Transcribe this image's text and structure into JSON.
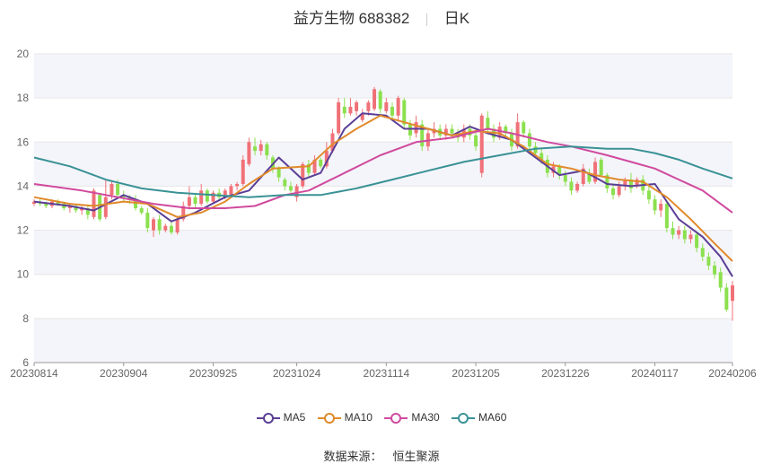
{
  "header": {
    "stock_name": "益方生物 688382",
    "period": "日K"
  },
  "source": {
    "label": "数据来源：",
    "provider": "恒生聚源"
  },
  "colors": {
    "up": "#f07178",
    "down": "#8be04e",
    "MA5": "#5b3e96",
    "MA10": "#e08a2b",
    "MA30": "#d04a9e",
    "MA60": "#3a9296",
    "band": "#f4f5fa",
    "grid": "#e6e6e6"
  },
  "chart_data": {
    "type": "candlestick",
    "ylim": [
      6,
      20
    ],
    "yticks": [
      6,
      8,
      10,
      12,
      14,
      16,
      18,
      20
    ],
    "xtick_labels": [
      "20230814",
      "20230904",
      "20230925",
      "20231024",
      "20231114",
      "20231205",
      "20231226",
      "20240117",
      "20240206"
    ],
    "trading_days": 118,
    "xtick_day_index": [
      0,
      15,
      30,
      44,
      59,
      74,
      89,
      104,
      117
    ],
    "legend": [
      "MA5",
      "MA10",
      "MA30",
      "MA60"
    ],
    "series": [
      {
        "name": "MA5",
        "points": [
          [
            0,
            13.3
          ],
          [
            6,
            13.1
          ],
          [
            10,
            12.9
          ],
          [
            15,
            13.6
          ],
          [
            19,
            13.2
          ],
          [
            23,
            12.4
          ],
          [
            27,
            12.8
          ],
          [
            32,
            13.5
          ],
          [
            36,
            13.8
          ],
          [
            41,
            15.3
          ],
          [
            45,
            14.3
          ],
          [
            48,
            14.6
          ],
          [
            52,
            16.6
          ],
          [
            55,
            17.3
          ],
          [
            59,
            17.2
          ],
          [
            62,
            16.6
          ],
          [
            66,
            16.6
          ],
          [
            70,
            16.3
          ],
          [
            73,
            16.7
          ],
          [
            76,
            16.4
          ],
          [
            80,
            16.1
          ],
          [
            84,
            15.3
          ],
          [
            88,
            14.5
          ],
          [
            92,
            14.7
          ],
          [
            96,
            14.1
          ],
          [
            100,
            14.0
          ],
          [
            104,
            14.1
          ],
          [
            108,
            12.5
          ],
          [
            112,
            11.7
          ],
          [
            115,
            10.8
          ],
          [
            117,
            9.9
          ]
        ]
      },
      {
        "name": "MA10",
        "points": [
          [
            0,
            13.5
          ],
          [
            6,
            13.2
          ],
          [
            10,
            13.1
          ],
          [
            15,
            13.3
          ],
          [
            19,
            13.2
          ],
          [
            24,
            12.6
          ],
          [
            28,
            12.8
          ],
          [
            32,
            13.3
          ],
          [
            36,
            14.1
          ],
          [
            40,
            14.8
          ],
          [
            46,
            14.9
          ],
          [
            50,
            15.9
          ],
          [
            54,
            16.6
          ],
          [
            58,
            17.2
          ],
          [
            62,
            16.9
          ],
          [
            66,
            16.6
          ],
          [
            70,
            16.3
          ],
          [
            74,
            16.5
          ],
          [
            78,
            16.4
          ],
          [
            82,
            15.8
          ],
          [
            86,
            15.0
          ],
          [
            90,
            14.8
          ],
          [
            94,
            14.5
          ],
          [
            98,
            14.3
          ],
          [
            102,
            14.2
          ],
          [
            106,
            13.5
          ],
          [
            110,
            12.5
          ],
          [
            114,
            11.4
          ],
          [
            117,
            10.6
          ]
        ]
      },
      {
        "name": "MA30",
        "points": [
          [
            0,
            14.1
          ],
          [
            8,
            13.8
          ],
          [
            14,
            13.5
          ],
          [
            20,
            13.2
          ],
          [
            26,
            13.0
          ],
          [
            32,
            13.0
          ],
          [
            37,
            13.1
          ],
          [
            42,
            13.6
          ],
          [
            46,
            13.8
          ],
          [
            52,
            14.6
          ],
          [
            58,
            15.4
          ],
          [
            64,
            16.0
          ],
          [
            70,
            16.2
          ],
          [
            76,
            16.6
          ],
          [
            80,
            16.4
          ],
          [
            86,
            16.0
          ],
          [
            90,
            15.8
          ],
          [
            96,
            15.4
          ],
          [
            100,
            15.1
          ],
          [
            104,
            14.8
          ],
          [
            108,
            14.3
          ],
          [
            112,
            13.8
          ],
          [
            117,
            12.8
          ]
        ]
      },
      {
        "name": "MA60",
        "points": [
          [
            0,
            15.3
          ],
          [
            6,
            14.9
          ],
          [
            12,
            14.3
          ],
          [
            18,
            13.9
          ],
          [
            24,
            13.7
          ],
          [
            30,
            13.6
          ],
          [
            36,
            13.5
          ],
          [
            42,
            13.6
          ],
          [
            48,
            13.6
          ],
          [
            54,
            13.9
          ],
          [
            60,
            14.3
          ],
          [
            66,
            14.7
          ],
          [
            72,
            15.1
          ],
          [
            78,
            15.4
          ],
          [
            84,
            15.7
          ],
          [
            90,
            15.8
          ],
          [
            96,
            15.7
          ],
          [
            100,
            15.7
          ],
          [
            104,
            15.5
          ],
          [
            108,
            15.2
          ],
          [
            112,
            14.8
          ],
          [
            117,
            14.35
          ]
        ]
      }
    ],
    "candles": [
      [
        0,
        13.2,
        13.3,
        13.4,
        13.1
      ],
      [
        1,
        13.3,
        13.2,
        13.4,
        13.1
      ],
      [
        2,
        13.2,
        13.1,
        13.3,
        13.0
      ],
      [
        3,
        13.1,
        13.3,
        13.4,
        13.0
      ],
      [
        4,
        13.3,
        13.2,
        13.4,
        13.1
      ],
      [
        5,
        13.2,
        13.0,
        13.3,
        12.9
      ],
      [
        6,
        13.0,
        13.1,
        13.2,
        12.8
      ],
      [
        7,
        13.1,
        12.9,
        13.2,
        12.8
      ],
      [
        8,
        12.9,
        13.0,
        13.1,
        12.7
      ],
      [
        9,
        13.0,
        12.7,
        13.1,
        12.5
      ],
      [
        10,
        12.6,
        13.8,
        13.9,
        12.5
      ],
      [
        11,
        13.6,
        12.5,
        13.7,
        12.4
      ],
      [
        12,
        12.6,
        13.5,
        14.3,
        12.5
      ],
      [
        13,
        13.6,
        14.1,
        14.2,
        13.4
      ],
      [
        14,
        14.1,
        13.6,
        14.3,
        13.5
      ],
      [
        15,
        13.6,
        13.5,
        13.8,
        13.3
      ],
      [
        16,
        13.5,
        13.4,
        13.6,
        13.2
      ],
      [
        17,
        13.4,
        13.0,
        13.6,
        12.9
      ],
      [
        18,
        13.0,
        12.8,
        13.1,
        12.7
      ],
      [
        19,
        12.8,
        12.1,
        13.0,
        11.9
      ],
      [
        20,
        12.0,
        12.5,
        12.6,
        11.7
      ],
      [
        21,
        12.5,
        12.0,
        12.7,
        11.8
      ],
      [
        22,
        12.0,
        12.2,
        12.3,
        11.9
      ],
      [
        23,
        12.2,
        11.9,
        12.4,
        11.8
      ],
      [
        24,
        11.9,
        12.5,
        12.6,
        11.8
      ],
      [
        25,
        12.5,
        13.1,
        13.3,
        12.4
      ],
      [
        26,
        13.1,
        13.5,
        14.0,
        13.0
      ],
      [
        27,
        13.5,
        13.2,
        13.7,
        13.0
      ],
      [
        28,
        13.2,
        13.8,
        14.1,
        13.1
      ],
      [
        29,
        13.8,
        13.3,
        13.9,
        13.2
      ],
      [
        30,
        13.3,
        13.7,
        13.8,
        13.2
      ],
      [
        31,
        13.7,
        13.5,
        13.9,
        13.4
      ],
      [
        32,
        13.5,
        13.8,
        13.9,
        13.4
      ],
      [
        33,
        13.6,
        14.0,
        14.1,
        13.5
      ],
      [
        34,
        14.0,
        14.1,
        14.2,
        13.8
      ],
      [
        35,
        14.1,
        15.2,
        15.4,
        14.0
      ],
      [
        36,
        15.0,
        16.0,
        16.2,
        14.9
      ],
      [
        37,
        15.8,
        15.6,
        16.2,
        15.4
      ],
      [
        38,
        15.6,
        15.9,
        16.1,
        15.4
      ],
      [
        39,
        15.9,
        15.4,
        16.0,
        15.2
      ],
      [
        40,
        15.3,
        14.8,
        15.4,
        14.6
      ],
      [
        41,
        14.8,
        14.4,
        14.9,
        14.2
      ],
      [
        42,
        14.3,
        14.0,
        14.4,
        13.8
      ],
      [
        43,
        14.0,
        13.8,
        14.2,
        13.7
      ],
      [
        44,
        13.5,
        14.0,
        14.1,
        13.3
      ],
      [
        45,
        14.0,
        15.0,
        15.1,
        13.9
      ],
      [
        46,
        15.0,
        14.6,
        15.2,
        14.4
      ],
      [
        47,
        14.6,
        15.2,
        15.4,
        14.5
      ],
      [
        48,
        15.2,
        14.9,
        15.3,
        14.8
      ],
      [
        49,
        14.9,
        15.6,
        16.0,
        14.8
      ],
      [
        50,
        15.6,
        16.4,
        16.6,
        15.5
      ],
      [
        51,
        16.4,
        17.8,
        18.0,
        16.3
      ],
      [
        52,
        17.6,
        17.3,
        18.0,
        17.1
      ],
      [
        53,
        17.3,
        17.6,
        18.0,
        17.2
      ],
      [
        54,
        17.4,
        17.8,
        17.9,
        17.2
      ],
      [
        55,
        17.0,
        17.3,
        17.5,
        16.9
      ],
      [
        56,
        17.4,
        17.8,
        17.9,
        17.2
      ],
      [
        57,
        17.5,
        18.4,
        18.5,
        17.4
      ],
      [
        58,
        18.3,
        17.5,
        18.4,
        17.3
      ],
      [
        59,
        17.4,
        17.8,
        18.0,
        17.3
      ],
      [
        60,
        17.6,
        17.2,
        17.8,
        17.0
      ],
      [
        61,
        17.2,
        18.0,
        18.1,
        17.0
      ],
      [
        62,
        17.9,
        16.8,
        18.0,
        16.6
      ],
      [
        63,
        16.8,
        16.3,
        17.0,
        16.1
      ],
      [
        64,
        16.4,
        16.9,
        17.2,
        16.2
      ],
      [
        65,
        16.8,
        15.8,
        17.0,
        15.6
      ],
      [
        66,
        15.8,
        16.4,
        16.6,
        15.6
      ],
      [
        67,
        16.4,
        16.6,
        16.9,
        16.2
      ],
      [
        68,
        16.6,
        16.3,
        16.8,
        16.1
      ],
      [
        69,
        16.3,
        16.6,
        16.8,
        16.1
      ],
      [
        70,
        16.6,
        16.4,
        16.8,
        16.2
      ],
      [
        71,
        16.4,
        16.2,
        16.6,
        16.0
      ],
      [
        72,
        16.2,
        16.6,
        16.8,
        16.0
      ],
      [
        73,
        16.6,
        16.3,
        16.8,
        16.1
      ],
      [
        74,
        16.3,
        15.8,
        16.5,
        15.6
      ],
      [
        75,
        14.6,
        17.2,
        17.3,
        14.4
      ],
      [
        76,
        17.1,
        16.6,
        17.4,
        16.4
      ],
      [
        77,
        16.6,
        16.2,
        16.8,
        16.0
      ],
      [
        78,
        16.2,
        16.7,
        16.9,
        16.1
      ],
      [
        79,
        16.7,
        16.4,
        16.8,
        16.2
      ],
      [
        80,
        16.4,
        15.8,
        16.6,
        15.6
      ],
      [
        81,
        15.8,
        16.9,
        17.3,
        15.7
      ],
      [
        82,
        16.9,
        16.4,
        17.0,
        16.2
      ],
      [
        83,
        16.4,
        15.8,
        16.6,
        15.6
      ],
      [
        84,
        15.8,
        15.5,
        16.0,
        15.3
      ],
      [
        85,
        15.5,
        15.2,
        15.7,
        15.0
      ],
      [
        86,
        15.2,
        14.6,
        15.4,
        14.4
      ],
      [
        87,
        14.6,
        14.9,
        15.1,
        14.4
      ],
      [
        88,
        14.9,
        14.5,
        15.0,
        14.3
      ],
      [
        89,
        14.5,
        14.2,
        14.7,
        14.0
      ],
      [
        90,
        14.2,
        13.8,
        14.4,
        13.6
      ],
      [
        91,
        13.8,
        14.1,
        14.2,
        13.7
      ],
      [
        92,
        14.1,
        14.8,
        15.0,
        14.0
      ],
      [
        93,
        14.6,
        14.2,
        14.8,
        14.1
      ],
      [
        94,
        14.2,
        15.1,
        15.3,
        14.1
      ],
      [
        95,
        15.2,
        14.5,
        15.3,
        14.4
      ],
      [
        96,
        14.5,
        13.9,
        14.6,
        13.7
      ],
      [
        97,
        13.9,
        13.6,
        14.1,
        13.4
      ],
      [
        98,
        13.6,
        14.0,
        14.2,
        13.5
      ],
      [
        99,
        14.0,
        14.3,
        14.4,
        13.8
      ],
      [
        100,
        14.3,
        13.9,
        14.6,
        13.7
      ],
      [
        101,
        14.0,
        14.3,
        14.4,
        13.9
      ],
      [
        102,
        14.3,
        13.8,
        14.5,
        13.6
      ],
      [
        103,
        13.8,
        13.4,
        14.0,
        13.2
      ],
      [
        104,
        13.4,
        12.9,
        13.6,
        12.7
      ],
      [
        105,
        12.9,
        13.2,
        13.4,
        12.6
      ],
      [
        106,
        13.2,
        12.1,
        13.3,
        11.9
      ],
      [
        107,
        12.1,
        11.8,
        12.4,
        11.6
      ],
      [
        108,
        11.8,
        12.0,
        12.2,
        11.6
      ],
      [
        109,
        12.0,
        11.6,
        12.2,
        11.4
      ],
      [
        110,
        11.6,
        11.8,
        12.0,
        11.4
      ],
      [
        111,
        11.8,
        11.2,
        11.9,
        11.0
      ],
      [
        112,
        11.2,
        10.8,
        11.4,
        10.6
      ],
      [
        113,
        10.8,
        10.4,
        11.0,
        10.2
      ],
      [
        114,
        10.4,
        10.0,
        10.6,
        9.8
      ],
      [
        115,
        10.1,
        9.4,
        10.3,
        9.2
      ],
      [
        116,
        9.4,
        8.4,
        9.6,
        8.3
      ],
      [
        117,
        8.8,
        9.5,
        9.7,
        7.9
      ]
    ]
  }
}
